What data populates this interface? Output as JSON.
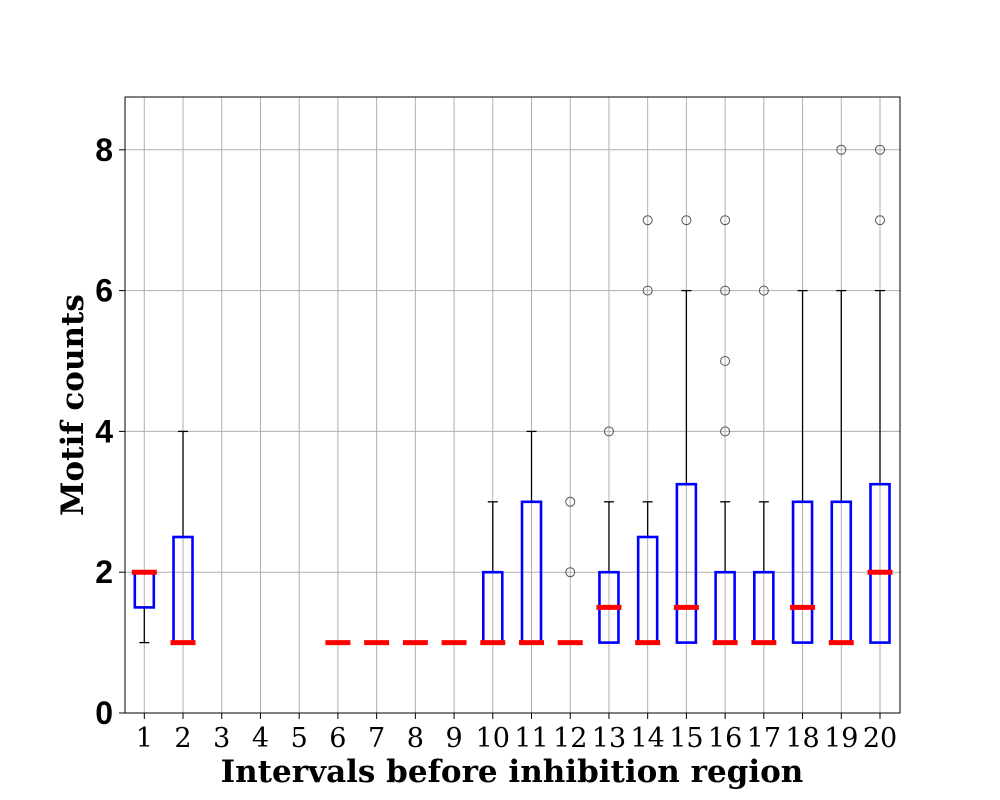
{
  "chart_data": {
    "type": "box",
    "xlabel": "Intervals before inhibition region",
    "ylabel": "Motif counts",
    "ylim": [
      0,
      8.75
    ],
    "yticks": [
      0,
      2,
      4,
      6,
      8
    ],
    "grid": true,
    "colors": {
      "box": "#0000ff",
      "median": "#ff0000",
      "whisker": "#000000",
      "flier": "#555555",
      "grid": "#b0b0b0"
    },
    "categories": [
      "1",
      "2",
      "3",
      "4",
      "5",
      "6",
      "7",
      "8",
      "9",
      "10",
      "11",
      "12",
      "13",
      "14",
      "15",
      "16",
      "17",
      "18",
      "19",
      "20"
    ],
    "boxes": [
      {
        "q1": 1.5,
        "q3": 2,
        "median": 2,
        "low": 1,
        "high": 2,
        "fliers": []
      },
      {
        "q1": 1,
        "q3": 2.5,
        "median": 1,
        "low": 1,
        "high": 4,
        "fliers": []
      },
      null,
      null,
      null,
      {
        "q1": 1,
        "q3": 1,
        "median": 1,
        "low": 1,
        "high": 1,
        "fliers": []
      },
      {
        "q1": 1,
        "q3": 1,
        "median": 1,
        "low": 1,
        "high": 1,
        "fliers": []
      },
      {
        "q1": 1,
        "q3": 1,
        "median": 1,
        "low": 1,
        "high": 1,
        "fliers": []
      },
      {
        "q1": 1,
        "q3": 1,
        "median": 1,
        "low": 1,
        "high": 1,
        "fliers": []
      },
      {
        "q1": 1,
        "q3": 2,
        "median": 1,
        "low": 1,
        "high": 3,
        "fliers": []
      },
      {
        "q1": 1,
        "q3": 3,
        "median": 1,
        "low": 1,
        "high": 4,
        "fliers": []
      },
      {
        "q1": 1,
        "q3": 1,
        "median": 1,
        "low": 1,
        "high": 1,
        "fliers": [
          2,
          3
        ]
      },
      {
        "q1": 1,
        "q3": 2,
        "median": 1.5,
        "low": 1,
        "high": 3,
        "fliers": [
          4
        ]
      },
      {
        "q1": 1,
        "q3": 2.5,
        "median": 1,
        "low": 1,
        "high": 3,
        "fliers": [
          6,
          7
        ]
      },
      {
        "q1": 1,
        "q3": 3.25,
        "median": 1.5,
        "low": 1,
        "high": 6,
        "fliers": [
          7
        ]
      },
      {
        "q1": 1,
        "q3": 2,
        "median": 1,
        "low": 1,
        "high": 3,
        "fliers": [
          4,
          5,
          6,
          7
        ]
      },
      {
        "q1": 1,
        "q3": 2,
        "median": 1,
        "low": 1,
        "high": 3,
        "fliers": [
          6
        ]
      },
      {
        "q1": 1,
        "q3": 3,
        "median": 1.5,
        "low": 1,
        "high": 6,
        "fliers": []
      },
      {
        "q1": 1,
        "q3": 3,
        "median": 1,
        "low": 1,
        "high": 6,
        "fliers": [
          8
        ]
      },
      {
        "q1": 1,
        "q3": 3.25,
        "median": 2,
        "low": 1,
        "high": 6,
        "fliers": [
          7,
          8
        ]
      }
    ]
  }
}
